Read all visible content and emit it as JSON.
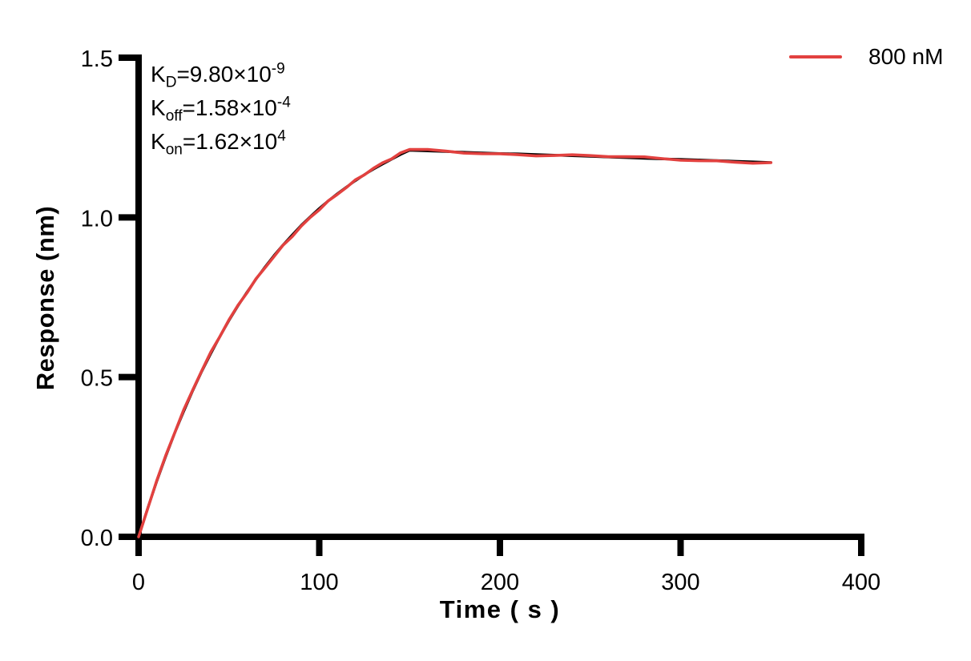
{
  "figure": {
    "background": "#ffffff",
    "axis_color": "#000000"
  },
  "kinetics_annotation": {
    "lines": [
      {
        "base": "K",
        "sub": "D",
        "value": "=9.80×10",
        "sup": "-9"
      },
      {
        "base": "K",
        "sub": "off",
        "value": "=1.58×10",
        "sup": "-4"
      },
      {
        "base": "K",
        "sub": "on",
        "value": "=1.62×10",
        "sup": "4"
      }
    ]
  },
  "legend": {
    "position": "top-right",
    "entries": [
      {
        "label": "800 nM",
        "color": "#e2413f"
      }
    ]
  },
  "chart_data": {
    "type": "line",
    "title": "",
    "xlabel": "Time ( s )",
    "ylabel": "Response (nm)",
    "xlim": [
      0,
      400
    ],
    "ylim": [
      0,
      1.5
    ],
    "grid": false,
    "legend_position": "top-right",
    "x_tick_values": [
      0,
      100,
      200,
      300,
      400
    ],
    "x_tick_labels": [
      "0",
      "100",
      "200",
      "300",
      "400"
    ],
    "y_tick_values": [
      0,
      0.5,
      1.0,
      1.5
    ],
    "y_tick_labels": [
      "0.0",
      "0.5",
      "1.0",
      "1.5"
    ],
    "kinetics": {
      "KD": "9.80e-9",
      "Koff": "1.58e-4",
      "Kon": "1.62e4",
      "concentration": "800 nM"
    },
    "phases": {
      "association_end_s": 150,
      "dissociation_end_s": 350,
      "peak_response_nm": 1.21,
      "end_response_nm": 1.172
    },
    "x": [
      0,
      5,
      10,
      15,
      20,
      25,
      30,
      35,
      40,
      45,
      50,
      55,
      60,
      65,
      70,
      75,
      80,
      85,
      90,
      95,
      100,
      105,
      110,
      115,
      120,
      125,
      130,
      135,
      140,
      145,
      150,
      160,
      170,
      180,
      190,
      200,
      210,
      220,
      230,
      240,
      250,
      260,
      270,
      280,
      290,
      300,
      310,
      320,
      330,
      340,
      350
    ],
    "series": [
      {
        "name": "800 nM",
        "role": "experimental",
        "color": "#e2413f",
        "values": [
          0,
          0.089,
          0.173,
          0.251,
          0.325,
          0.393,
          0.458,
          0.518,
          0.574,
          0.627,
          0.677,
          0.723,
          0.766,
          0.807,
          0.845,
          0.881,
          0.914,
          0.945,
          0.975,
          1.002,
          1.028,
          1.052,
          1.074,
          1.095,
          1.115,
          1.134,
          1.151,
          1.167,
          1.182,
          1.197,
          1.21,
          1.208,
          1.206,
          1.204,
          1.202,
          1.2,
          1.199,
          1.197,
          1.195,
          1.193,
          1.191,
          1.189,
          1.187,
          1.185,
          1.183,
          1.182,
          1.18,
          1.178,
          1.176,
          1.174,
          1.172
        ]
      },
      {
        "name": "fit",
        "role": "fitted-curve",
        "color": "#000000",
        "values": [
          0,
          0.089,
          0.173,
          0.251,
          0.325,
          0.393,
          0.458,
          0.518,
          0.574,
          0.627,
          0.677,
          0.723,
          0.766,
          0.807,
          0.845,
          0.881,
          0.914,
          0.945,
          0.975,
          1.002,
          1.028,
          1.052,
          1.074,
          1.095,
          1.115,
          1.134,
          1.151,
          1.167,
          1.182,
          1.197,
          1.21,
          1.208,
          1.206,
          1.204,
          1.202,
          1.2,
          1.199,
          1.197,
          1.195,
          1.193,
          1.191,
          1.189,
          1.187,
          1.185,
          1.183,
          1.182,
          1.18,
          1.178,
          1.176,
          1.174,
          1.172
        ]
      }
    ]
  }
}
